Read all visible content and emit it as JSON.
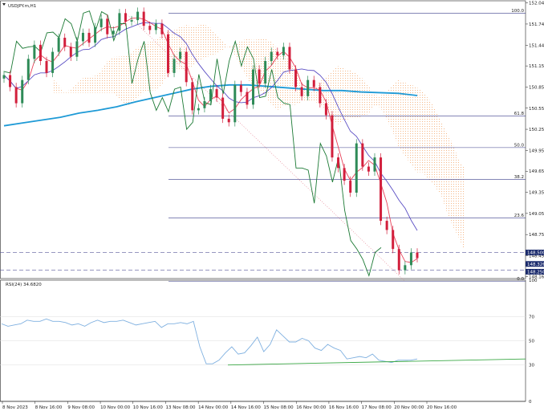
{
  "header": {
    "symbol": "USDJPY.m,H1",
    "rsi_label": "RSI(24) 34.6820"
  },
  "colors": {
    "candle_up": "#2e8b57",
    "candle_down": "#d21f3c",
    "ma200": "#1e9ad6",
    "tenkan": "#e8435a",
    "kijun": "#5b4fc4",
    "chikou": "#1c7a35",
    "cloud": "#f2a060",
    "rsi_line": "#7fb0e0",
    "rsi_trend": "#3aa845",
    "fib": "#3b3f8a",
    "hline": "#5a5a9a",
    "price_tag": "#1a2a6c"
  },
  "chart_data": [
    {
      "type": "candlestick",
      "symbol": "USDJPY.m,H1",
      "ylim": [
        148.13,
        152.075
      ],
      "y_ticks": [
        "152.045",
        "151.745",
        "151.445",
        "151.150",
        "150.850",
        "150.550",
        "150.250",
        "149.950",
        "149.655",
        "149.355",
        "149.055",
        "148.755",
        "148.455",
        "148.160"
      ],
      "x_ticks": [
        "8 Nov 2023",
        "8 Nov 16:00",
        "9 Nov 08:00",
        "10 Nov 00:00",
        "10 Nov 16:00",
        "13 Nov 08:00",
        "14 Nov 00:00",
        "14 Nov 16:00",
        "15 Nov 08:00",
        "16 Nov 00:00",
        "16 Nov 16:00",
        "17 Nov 08:00",
        "20 Nov 00:00",
        "20 Nov 16:00"
      ],
      "fibonacci": [
        {
          "label": "100.0",
          "value": 151.9
        },
        {
          "label": "61.8",
          "value": 150.44
        },
        {
          "label": "50.0",
          "value": 149.99
        },
        {
          "label": "38.2",
          "value": 149.54
        },
        {
          "label": "23.6",
          "value": 148.99
        },
        {
          "label": "0.0",
          "value": 148.09
        }
      ],
      "price_tags": [
        "148.500",
        "148.326",
        "148.250"
      ],
      "close_series": [
        151.02,
        150.85,
        150.62,
        150.95,
        151.25,
        151.45,
        151.22,
        151.05,
        151.35,
        151.55,
        151.42,
        151.28,
        151.5,
        151.62,
        151.48,
        151.7,
        151.82,
        151.6,
        151.65,
        151.9,
        151.78,
        151.8,
        151.92,
        151.72,
        151.66,
        151.75,
        151.6,
        151.05,
        151.25,
        151.35,
        150.92,
        150.52,
        150.55,
        150.65,
        150.82,
        150.7,
        150.4,
        150.35,
        150.88,
        150.78,
        150.6,
        151.1,
        150.9,
        151.22,
        151.35,
        151.3,
        151.42,
        151.1,
        150.85,
        150.72,
        150.95,
        150.85,
        150.62,
        150.45,
        149.85,
        149.7,
        149.52,
        149.35,
        150.05,
        149.72,
        149.65,
        149.85,
        148.95,
        148.82,
        148.55,
        148.25,
        148.32,
        148.5,
        148.42
      ],
      "ma200": [
        150.3,
        150.34,
        150.38,
        150.42,
        150.48,
        150.52,
        150.57,
        150.64,
        150.7,
        150.76,
        150.82,
        150.86,
        150.88,
        150.88,
        150.86,
        150.84,
        150.82,
        150.8,
        150.8,
        150.78,
        150.77,
        150.76,
        150.73
      ],
      "rsi": {
        "ylim": [
          0,
          100
        ],
        "levels": [
          70,
          50,
          30
        ],
        "tick_labels": [
          "100",
          "70",
          "50",
          "30",
          "0"
        ],
        "value": 34.682,
        "values": [
          64,
          62,
          63,
          64,
          67,
          66,
          66,
          68,
          66,
          66,
          65,
          63,
          64,
          62,
          65,
          67,
          65,
          66,
          66,
          67,
          65,
          63,
          64,
          65,
          66,
          61,
          64,
          64,
          65,
          64,
          66,
          45,
          31,
          31,
          34,
          40,
          45,
          39,
          40,
          46,
          53,
          41,
          47,
          59,
          54,
          49,
          49,
          52,
          50,
          44,
          42,
          47,
          44,
          42,
          35,
          36,
          37,
          36,
          39,
          34,
          33,
          32,
          34,
          34,
          34,
          35
        ]
      }
    }
  ]
}
